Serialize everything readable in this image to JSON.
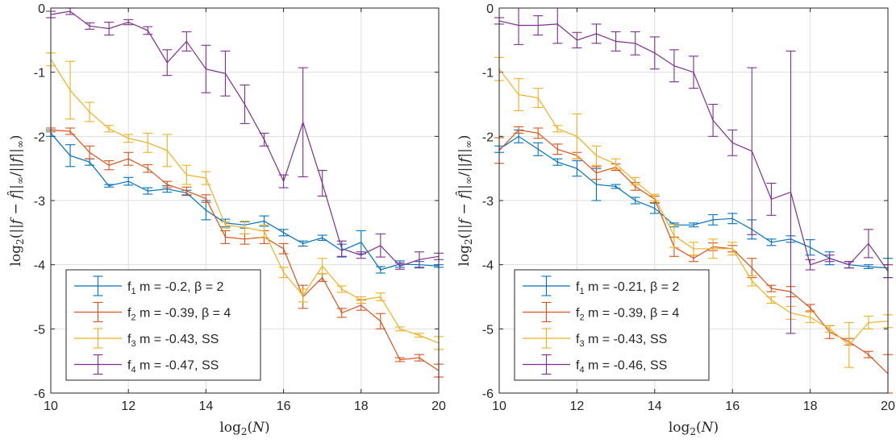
{
  "chart_data": [
    {
      "type": "line",
      "title": "",
      "xlabel": "log2(N)",
      "ylabel": "log2(||f − f̂||∞/||f||∞)",
      "xlim": [
        10,
        20
      ],
      "ylim": [
        -6,
        0
      ],
      "xticks": [
        "10",
        "12",
        "14",
        "16",
        "18",
        "20"
      ],
      "yticks": [
        "0",
        "-1",
        "-2",
        "-3",
        "-4",
        "-5",
        "-6"
      ],
      "grid": true,
      "legend_position": "bottom-left",
      "x": [
        10,
        10.5,
        11,
        11.5,
        12,
        12.5,
        13,
        13.5,
        14,
        14.5,
        15,
        15.5,
        16,
        16.5,
        17,
        17.5,
        18,
        18.5,
        19,
        19.5,
        20
      ],
      "series": [
        {
          "name": "f1",
          "sub": "1",
          "legend_rest": "  m = -0.2, β = 2",
          "color": "#0072bd",
          "values": [
            -1.95,
            -2.3,
            -2.4,
            -2.77,
            -2.7,
            -2.85,
            -2.82,
            -2.88,
            -3.15,
            -3.35,
            -3.38,
            -3.32,
            -3.5,
            -3.67,
            -3.58,
            -3.78,
            -3.65,
            -4.08,
            -3.99,
            -4.0,
            -4.02
          ],
          "errors": [
            0.05,
            0.17,
            0.05,
            0.02,
            0.06,
            0.05,
            0.05,
            0.04,
            0.15,
            0.06,
            0.05,
            0.08,
            0.05,
            0.04,
            0.04,
            0.1,
            0.18,
            0.05,
            0.05,
            0.05,
            0.02
          ]
        },
        {
          "name": "f2",
          "sub": "2",
          "legend_rest": "  m = -0.39, β = 4",
          "color": "#d95319",
          "values": [
            -1.9,
            -1.92,
            -2.25,
            -2.45,
            -2.35,
            -2.5,
            -2.75,
            -2.85,
            -2.97,
            -3.57,
            -3.6,
            -3.57,
            -3.75,
            -4.5,
            -4.2,
            -4.75,
            -4.63,
            -4.88,
            -5.48,
            -5.45,
            -5.65
          ],
          "errors": [
            0.03,
            0.05,
            0.1,
            0.07,
            0.1,
            0.06,
            0.05,
            0.06,
            0.06,
            0.1,
            0.08,
            0.1,
            0.08,
            0.18,
            0.06,
            0.07,
            0.08,
            0.12,
            0.03,
            0.05,
            0.1
          ]
        },
        {
          "name": "f3",
          "sub": "3",
          "legend_rest": "  m = -0.43, SS",
          "color": "#edb120",
          "values": [
            -0.8,
            -1.28,
            -1.62,
            -1.88,
            -2.03,
            -2.1,
            -2.22,
            -2.6,
            -2.65,
            -3.38,
            -3.42,
            -3.48,
            -4.12,
            -4.48,
            -4.02,
            -4.38,
            -4.55,
            -4.5,
            -5.0,
            -5.1,
            -5.22
          ],
          "errors": [
            0.1,
            0.45,
            0.15,
            0.05,
            0.06,
            0.15,
            0.25,
            0.15,
            0.1,
            0.05,
            0.1,
            0.1,
            0.08,
            0.1,
            0.12,
            0.05,
            0.05,
            0.06,
            0.03,
            0.03,
            0.1
          ]
        },
        {
          "name": "f4",
          "sub": "4",
          "legend_rest": "  m = -0.47, SS",
          "color": "#7e2f8e",
          "values": [
            -0.1,
            -0.05,
            -0.28,
            -0.32,
            -0.22,
            -0.35,
            -0.85,
            -0.52,
            -0.95,
            -1.02,
            -1.5,
            -2.05,
            -2.7,
            -1.78,
            -2.73,
            -3.75,
            -3.85,
            -3.7,
            -4.02,
            -3.92,
            -3.87
          ],
          "errors": [
            0.05,
            0.05,
            0.05,
            0.1,
            0.04,
            0.06,
            0.2,
            0.15,
            0.37,
            0.35,
            0.3,
            0.1,
            0.1,
            0.85,
            0.2,
            0.12,
            0.05,
            0.18,
            0.05,
            0.12,
            0.05
          ]
        }
      ]
    },
    {
      "type": "line",
      "title": "",
      "xlabel": "log2(N)",
      "ylabel": "log2(||f − f̂||∞/||f||∞)",
      "xlim": [
        10,
        20
      ],
      "ylim": [
        -6,
        0
      ],
      "xticks": [
        "10",
        "12",
        "14",
        "16",
        "18",
        "20"
      ],
      "yticks": [
        "0",
        "-1",
        "-2",
        "-3",
        "-4",
        "-5",
        "-6"
      ],
      "grid": true,
      "legend_position": "bottom-left",
      "x": [
        10,
        10.5,
        11,
        11.5,
        12,
        12.5,
        13,
        13.5,
        14,
        14.5,
        15,
        15.5,
        16,
        16.5,
        17,
        17.5,
        18,
        18.5,
        19,
        19.5,
        20
      ],
      "series": [
        {
          "name": "f1",
          "sub": "1",
          "legend_rest": "  m = -0.21, β = 2",
          "color": "#0072bd",
          "values": [
            -2.2,
            -2.0,
            -2.2,
            -2.4,
            -2.5,
            -2.75,
            -2.78,
            -3.0,
            -3.12,
            -3.38,
            -3.38,
            -3.3,
            -3.28,
            -3.45,
            -3.65,
            -3.6,
            -3.73,
            -3.9,
            -4.0,
            -4.03,
            -4.05
          ],
          "errors": [
            0.05,
            0.1,
            0.1,
            0.05,
            0.12,
            0.25,
            0.03,
            0.05,
            0.08,
            0.03,
            0.03,
            0.08,
            0.08,
            0.15,
            0.05,
            0.05,
            0.12,
            0.1,
            0.05,
            0.03,
            0.15
          ]
        },
        {
          "name": "f2",
          "sub": "2",
          "legend_rest": "  m = -0.39, β = 4",
          "color": "#d95319",
          "values": [
            -2.22,
            -1.9,
            -1.95,
            -2.2,
            -2.3,
            -2.57,
            -2.48,
            -2.78,
            -2.98,
            -3.72,
            -3.9,
            -3.72,
            -3.75,
            -4.05,
            -4.37,
            -4.42,
            -4.67,
            -5.05,
            -5.2,
            -5.4,
            -5.7
          ],
          "errors": [
            0.2,
            0.05,
            0.08,
            0.08,
            0.05,
            0.1,
            0.05,
            0.06,
            0.05,
            0.15,
            0.05,
            0.06,
            0.05,
            0.15,
            0.05,
            0.08,
            0.05,
            0.1,
            0.05,
            0.05,
            0.3
          ]
        },
        {
          "name": "f3",
          "sub": "3",
          "legend_rest": "  m = -0.43, SS",
          "color": "#edb120",
          "values": [
            -0.95,
            -1.35,
            -1.4,
            -1.88,
            -2.0,
            -2.3,
            -2.43,
            -2.7,
            -2.95,
            -3.55,
            -3.75,
            -3.75,
            -3.75,
            -4.25,
            -4.55,
            -4.75,
            -4.82,
            -5.0,
            -5.25,
            -4.9,
            -4.88
          ],
          "errors": [
            0.18,
            0.25,
            0.15,
            0.05,
            0.35,
            0.15,
            0.08,
            0.06,
            0.05,
            0.18,
            0.1,
            0.15,
            0.1,
            0.08,
            0.05,
            0.1,
            0.08,
            0.05,
            0.35,
            0.1,
            0.1
          ]
        },
        {
          "name": "f4",
          "sub": "4",
          "legend_rest": "  m = -0.46, SS",
          "color": "#7e2f8e",
          "values": [
            -0.2,
            -0.27,
            -0.27,
            -0.25,
            -0.5,
            -0.4,
            -0.52,
            -0.55,
            -0.7,
            -0.9,
            -1.0,
            -1.75,
            -2.1,
            -2.23,
            -2.98,
            -2.87,
            -4.0,
            -3.9,
            -4.0,
            -3.67,
            -4.1
          ],
          "errors": [
            0.05,
            0.3,
            0.15,
            0.3,
            0.12,
            0.15,
            0.15,
            0.18,
            0.25,
            0.25,
            0.25,
            0.25,
            0.2,
            1.3,
            0.25,
            2.2,
            0.08,
            0.05,
            0.05,
            0.22,
            0.1
          ]
        }
      ]
    }
  ]
}
